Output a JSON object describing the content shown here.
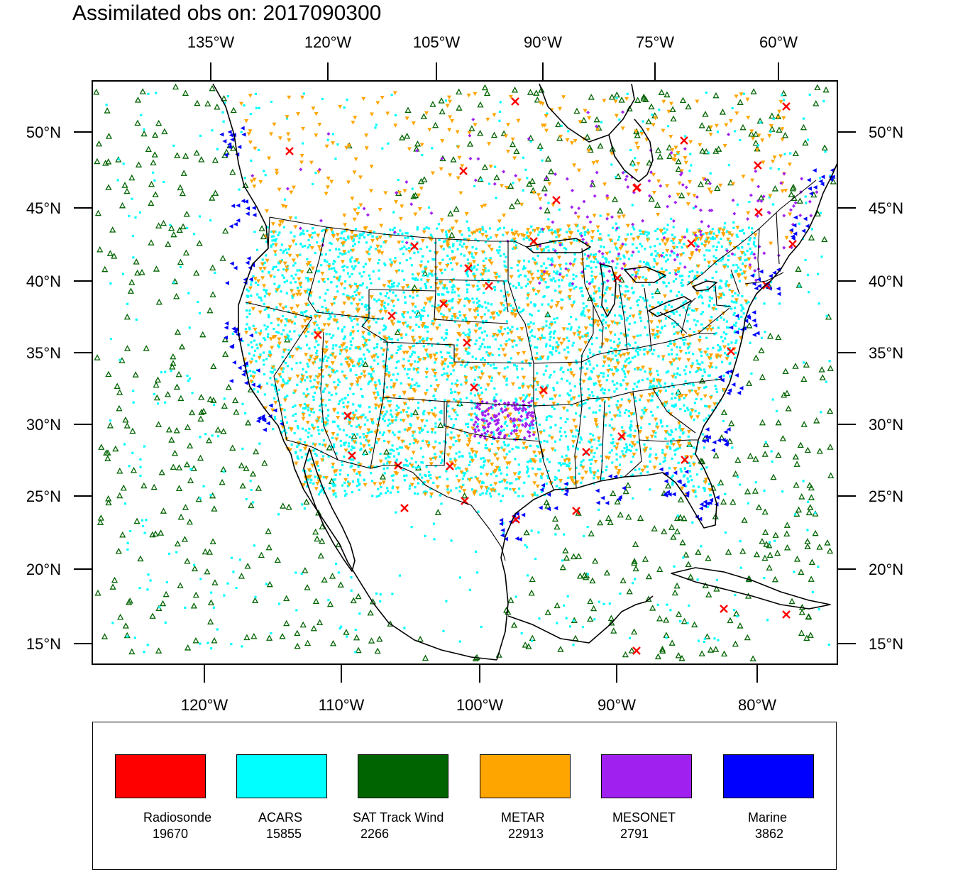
{
  "title": "Assimilated obs on: 2017090300",
  "top_lon_labels": [
    "135°W",
    "120°W",
    "105°W",
    "90°W",
    "75°W",
    "60°W"
  ],
  "bottom_lon_labels": [
    "120°W",
    "110°W",
    "100°W",
    "90°W",
    "80°W"
  ],
  "lat_labels": [
    "50°N",
    "45°N",
    "40°N",
    "35°N",
    "30°N",
    "25°N",
    "20°N",
    "15°N"
  ],
  "legend": [
    {
      "name": "Radiosonde",
      "count": "19670",
      "color": "#ff0000"
    },
    {
      "name": "ACARS",
      "count": "15855",
      "color": "#00ffff"
    },
    {
      "name": "SAT Track Wind",
      "count": "2266",
      "color": "#006400"
    },
    {
      "name": "METAR",
      "count": "22913",
      "color": "#ffa500"
    },
    {
      "name": "MESONET",
      "count": "2791",
      "color": "#a020f0"
    },
    {
      "name": "Marine",
      "count": "3862",
      "color": "#0000ff"
    }
  ],
  "chart_data": {
    "type": "scatter",
    "title": "Assimilated obs on: 2017090300",
    "projection": "Lambert conformal, CONUS domain",
    "lat_range": [
      14,
      53
    ],
    "lon_range": [
      -128,
      -74
    ],
    "series": [
      {
        "name": "Radiosonde",
        "count": 19670,
        "marker": "x",
        "color": "#ff0000"
      },
      {
        "name": "ACARS",
        "count": 15855,
        "marker": "dot",
        "color": "#00ffff"
      },
      {
        "name": "SAT Track Wind",
        "count": 2266,
        "marker": "triangle-up-open",
        "color": "#006400"
      },
      {
        "name": "METAR",
        "count": 22913,
        "marker": "triangle-down",
        "color": "#ffa500"
      },
      {
        "name": "MESONET",
        "count": 2791,
        "marker": "diamond",
        "color": "#a020f0"
      },
      {
        "name": "Marine",
        "count": 3862,
        "marker": "triangle-left",
        "color": "#0000ff"
      }
    ],
    "grid": false
  }
}
